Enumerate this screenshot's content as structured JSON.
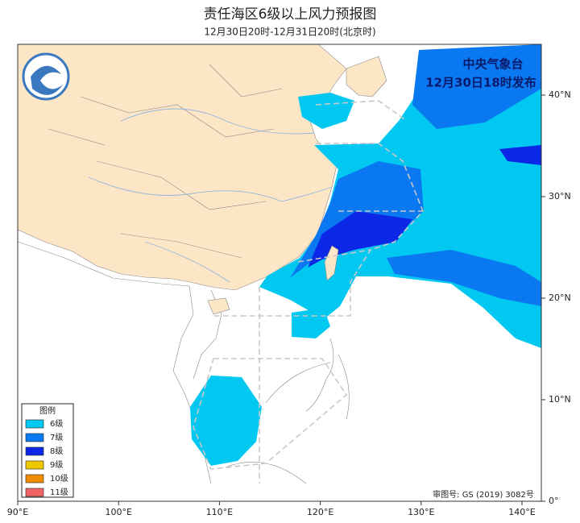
{
  "header": {
    "title": "责任海区6级以上风力预报图",
    "subtitle": "12月30日20时-12月31日20时(北京时)"
  },
  "issuer": {
    "name": "中央气象台",
    "time": "12月30日18时发布"
  },
  "map": {
    "xticks": [
      {
        "value": 90,
        "label": "90°E"
      },
      {
        "value": 100,
        "label": "100°E"
      },
      {
        "value": 110,
        "label": "110°E"
      },
      {
        "value": 120,
        "label": "120°E"
      },
      {
        "value": 130,
        "label": "130°E"
      },
      {
        "value": 140,
        "label": "140°E"
      }
    ],
    "yticks": [
      {
        "value": 0,
        "label": "0°"
      },
      {
        "value": 10,
        "label": "10°N"
      },
      {
        "value": 20,
        "label": "20°N"
      },
      {
        "value": 30,
        "label": "30°N"
      },
      {
        "value": 40,
        "label": "40°N"
      }
    ]
  },
  "legend": {
    "title": "图例",
    "items": [
      {
        "label": "6级",
        "color": "#00c8f0"
      },
      {
        "label": "7级",
        "color": "#0a78f0"
      },
      {
        "label": "8级",
        "color": "#0a28e6"
      },
      {
        "label": "9级",
        "color": "#f0c800"
      },
      {
        "label": "10级",
        "color": "#f08c00"
      },
      {
        "label": "11级",
        "color": "#f06464"
      }
    ]
  },
  "approval": "审图号: GS (2019) 3082号"
}
